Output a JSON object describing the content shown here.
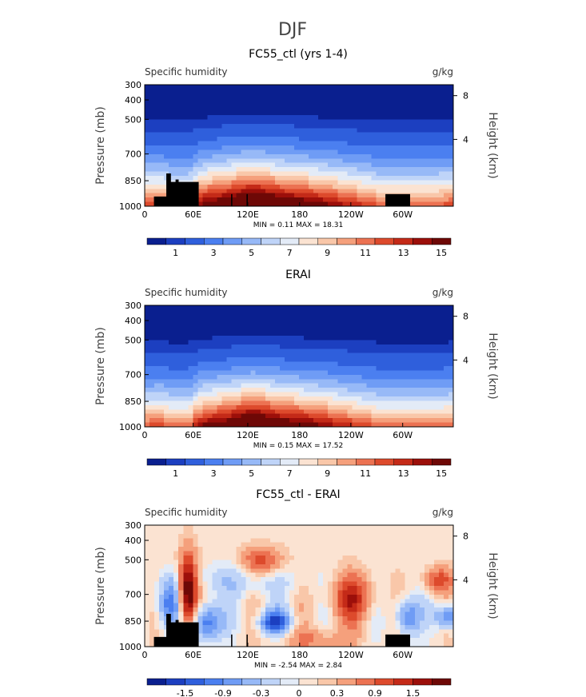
{
  "figure_title": "DJF",
  "colors": {
    "palette": [
      "#0a1f8f",
      "#1c3fc0",
      "#2f5fdc",
      "#4b7ff0",
      "#6f9cf5",
      "#97b9f7",
      "#bfd4f8",
      "#e3ebf7",
      "#fbe3d2",
      "#f9c7a9",
      "#f5a07c",
      "#ec7252",
      "#dd4a2c",
      "#c42a18",
      "#9c0f0a",
      "#6e0806"
    ],
    "topography": "#000000"
  },
  "chart_data": [
    {
      "type": "heatmap",
      "title": "FC55_ctl (yrs 1-4)",
      "left_label": "Specific humidity",
      "right_label": "g/kg",
      "ylabel": "Pressure (mb)",
      "ylabel_right": "Height (km)",
      "xticks": [
        "0",
        "60E",
        "120E",
        "180",
        "120W",
        "60W"
      ],
      "yticks": [
        "300",
        "400",
        "500",
        "700",
        "850",
        "1000"
      ],
      "yticks_right": [
        "8",
        "4"
      ],
      "stats": "MIN =    0.11   MAX =   18.31",
      "min": 0.11,
      "max": 18.31,
      "colorbar_labels": [
        "1",
        "3",
        "5",
        "7",
        "9",
        "11",
        "13",
        "15"
      ],
      "levels": [
        0.5,
        1,
        2,
        3,
        4,
        5,
        6,
        7,
        8,
        9,
        10,
        11,
        12,
        13,
        14,
        15
      ],
      "topography": true
    },
    {
      "type": "heatmap",
      "title": "ERAI",
      "left_label": "Specific humidity",
      "right_label": "g/kg",
      "ylabel": "Pressure (mb)",
      "ylabel_right": "Height (km)",
      "xticks": [
        "0",
        "60E",
        "120E",
        "180",
        "120W",
        "60W"
      ],
      "yticks": [
        "300",
        "400",
        "500",
        "700",
        "850",
        "1000"
      ],
      "yticks_right": [
        "8",
        "4"
      ],
      "stats": "MIN =    0.15   MAX =   17.52",
      "min": 0.15,
      "max": 17.52,
      "colorbar_labels": [
        "1",
        "3",
        "5",
        "7",
        "9",
        "11",
        "13",
        "15"
      ],
      "levels": [
        0.5,
        1,
        2,
        3,
        4,
        5,
        6,
        7,
        8,
        9,
        10,
        11,
        12,
        13,
        14,
        15
      ],
      "topography": false
    },
    {
      "type": "heatmap",
      "title": "FC55_ctl - ERAI",
      "left_label": "Specific humidity",
      "right_label": "g/kg",
      "ylabel": "Pressure (mb)",
      "ylabel_right": "Height (km)",
      "xticks": [
        "0",
        "60E",
        "120E",
        "180",
        "120W",
        "60W"
      ],
      "yticks": [
        "300",
        "400",
        "500",
        "700",
        "850",
        "1000"
      ],
      "yticks_right": [
        "8",
        "4"
      ],
      "stats": "MIN =  -2.54   MAX =    2.84",
      "min": -2.54,
      "max": 2.84,
      "colorbar_labels": [
        "-1.5",
        "-0.9",
        "-0.3",
        "0",
        "0.3",
        "0.9",
        "1.5"
      ],
      "levels": [
        -2.1,
        -1.8,
        -1.5,
        -1.2,
        -0.9,
        -0.6,
        -0.3,
        -0.1,
        0.1,
        0.3,
        0.6,
        0.9,
        1.2,
        1.5,
        1.8,
        2.1
      ],
      "topography": true
    }
  ]
}
